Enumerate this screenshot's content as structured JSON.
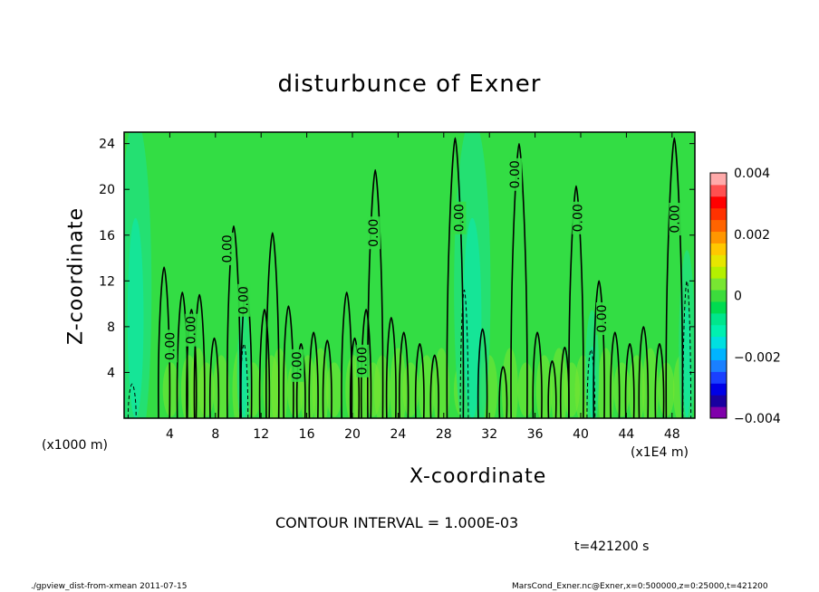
{
  "page": {
    "title": "disturbunce of Exner",
    "footer_left": "./gpview_dist-from-xmean  2011-07-15",
    "footer_right": "MarsCond_Exner.nc@Exner,x=0:500000,z=0:25000,t=421200"
  },
  "chart_data": {
    "type": "heatmap",
    "title": "disturbunce of Exner",
    "xlabel": "X-coordinate",
    "ylabel": "Z-coordinate",
    "x_unit_label": "(x1E4 m)",
    "y_unit_label": "(x1000 m)",
    "xlim": [
      0,
      50
    ],
    "ylim": [
      0,
      25
    ],
    "x_ticks": [
      4,
      8,
      12,
      16,
      20,
      24,
      28,
      32,
      36,
      40,
      44,
      48
    ],
    "y_ticks": [
      4,
      8,
      12,
      16,
      20,
      24
    ],
    "contour_interval_text": "CONTOUR INTERVAL = 1.000E-03",
    "time_text": "t=421200 s",
    "contour_label": "0.00",
    "colorbar": {
      "range": [
        -0.004,
        0.004
      ],
      "tick_labels": [
        "0.004",
        "0.002",
        "0",
        "−0.002",
        "−0.004"
      ],
      "tick_values": [
        0.004,
        0.002,
        0,
        -0.002,
        -0.004
      ],
      "colors": [
        "#7f00aa",
        "#1a00a0",
        "#0000e6",
        "#1a40ff",
        "#1a80ff",
        "#00b4ff",
        "#00e0e0",
        "#00f0b0",
        "#00e68c",
        "#00dc50",
        "#3cdc3c",
        "#78e632",
        "#b4f000",
        "#e6e600",
        "#ffc800",
        "#ff9600",
        "#ff6400",
        "#ff3200",
        "#ff0000",
        "#ff5050",
        "#ffaaaa"
      ]
    },
    "field_colors": {
      "background": "#33dd44",
      "slightly_negative": "#22e07a",
      "negative": "#11e6a0",
      "slightly_positive": "#7ae632"
    },
    "zero_contour_label_positions": [
      {
        "x": 4.1,
        "z": 6.3
      },
      {
        "x": 5.9,
        "z": 7.7
      },
      {
        "x": 9.1,
        "z": 14.8
      },
      {
        "x": 10.5,
        "z": 10.3
      },
      {
        "x": 15.2,
        "z": 4.6
      },
      {
        "x": 20.9,
        "z": 5.0
      },
      {
        "x": 21.9,
        "z": 16.2
      },
      {
        "x": 29.4,
        "z": 17.5
      },
      {
        "x": 34.3,
        "z": 21.3
      },
      {
        "x": 39.8,
        "z": 17.5
      },
      {
        "x": 41.9,
        "z": 8.7
      },
      {
        "x": 48.3,
        "z": 17.4
      }
    ],
    "zero_contour_peaks": [
      {
        "x": 3.5,
        "h": 13.2
      },
      {
        "x": 5.1,
        "h": 11.0
      },
      {
        "x": 5.9,
        "h": 9.5
      },
      {
        "x": 6.6,
        "h": 10.8
      },
      {
        "x": 7.9,
        "h": 7.0
      },
      {
        "x": 9.6,
        "h": 16.8
      },
      {
        "x": 10.7,
        "h": 11.5
      },
      {
        "x": 12.3,
        "h": 9.5
      },
      {
        "x": 13.0,
        "h": 16.2
      },
      {
        "x": 14.4,
        "h": 9.8
      },
      {
        "x": 15.5,
        "h": 6.5
      },
      {
        "x": 16.6,
        "h": 7.5
      },
      {
        "x": 17.8,
        "h": 6.8
      },
      {
        "x": 19.5,
        "h": 11.0
      },
      {
        "x": 20.2,
        "h": 7.0
      },
      {
        "x": 21.2,
        "h": 9.5
      },
      {
        "x": 22.0,
        "h": 21.7
      },
      {
        "x": 23.4,
        "h": 8.8
      },
      {
        "x": 24.5,
        "h": 7.5
      },
      {
        "x": 25.9,
        "h": 6.5
      },
      {
        "x": 27.2,
        "h": 5.5
      },
      {
        "x": 29.0,
        "h": 24.5
      },
      {
        "x": 31.4,
        "h": 7.8
      },
      {
        "x": 33.2,
        "h": 4.5
      },
      {
        "x": 34.6,
        "h": 24.0
      },
      {
        "x": 36.2,
        "h": 7.5
      },
      {
        "x": 37.5,
        "h": 5.0
      },
      {
        "x": 38.6,
        "h": 6.2
      },
      {
        "x": 39.6,
        "h": 20.3
      },
      {
        "x": 41.6,
        "h": 12.0
      },
      {
        "x": 43.0,
        "h": 7.5
      },
      {
        "x": 44.3,
        "h": 6.5
      },
      {
        "x": 45.5,
        "h": 8.0
      },
      {
        "x": 46.9,
        "h": 6.5
      },
      {
        "x": 48.2,
        "h": 24.5
      }
    ],
    "negative_dashed_contours": [
      {
        "x": 0.7,
        "h": 3.0
      },
      {
        "x": 10.5,
        "h": 6.5
      },
      {
        "x": 29.8,
        "h": 11.2
      },
      {
        "x": 40.9,
        "h": 6.0
      },
      {
        "x": 49.3,
        "h": 12.0
      }
    ]
  }
}
